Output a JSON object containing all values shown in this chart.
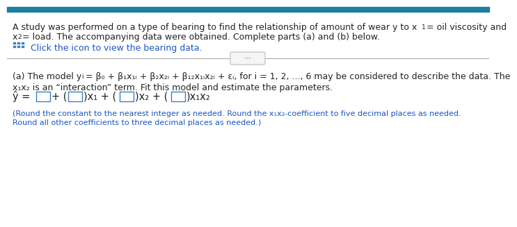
{
  "top_bar_color": "#1b7fa0",
  "background_color": "#ffffff",
  "text_color_black": "#222222",
  "text_color_blue": "#1a56c4",
  "sep_line_color": "#aaaaaa",
  "fs_body": 9.0,
  "fs_small": 8.0,
  "fs_eq": 10.5,
  "line1a": "A study was performed on a type of bearing to find the relationship of amount of wear y to x",
  "line1b": "= oil viscosity and",
  "line2a": "x",
  "line2b": "= load. The accompanying data were obtained. Complete parts (a) and (b) below.",
  "line3": "Click the icon to view the bearing data.",
  "part_a_1a": "(a) The model y",
  "part_a_1b": "= β₀ + β₁x₁ᵢ + β₂x₂ᵢ + β₁₂x₁ᵢx₂ᵢ + εᵢ, for i = 1, 2, ..., 6 may be considered to describe the data. The",
  "part_a_2": "x₁x₂ is an “interaction” term. Fit this model and estimate the parameters.",
  "note1": "(Round the constant to the nearest integer as needed. Round the x₁x₂-coefficient to five decimal places as needed.",
  "note2": "Round all other coefficients to three decimal places as needed.)"
}
